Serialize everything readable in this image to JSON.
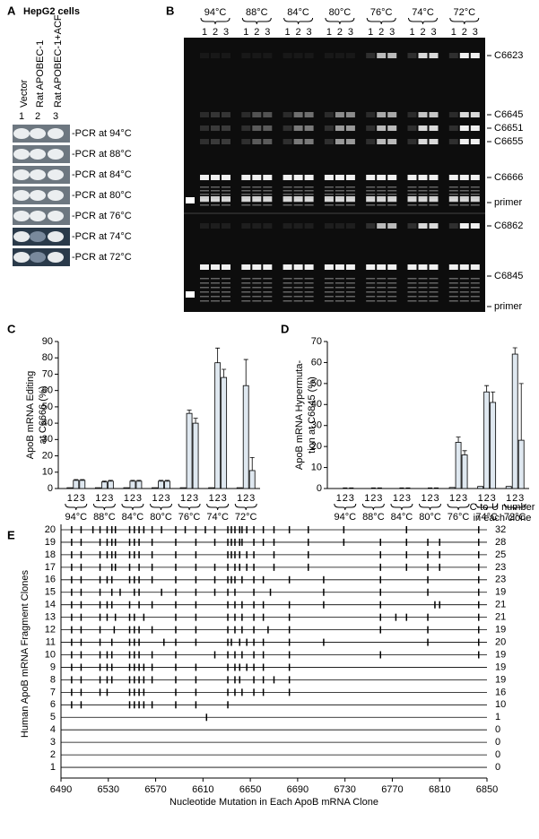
{
  "panel_a": {
    "label": "A",
    "title": "HepG2 cells",
    "lanes": [
      "Vector",
      "Rat APOBEC-1",
      "Rat APOBEC-1+ACF"
    ],
    "lane_numbers": [
      "1",
      "2",
      "3"
    ],
    "rows": [
      "-PCR at 94°C",
      "-PCR at 88°C",
      "-PCR at 84°C",
      "-PCR at 80°C",
      "-PCR at 76°C",
      "-PCR at 74°C",
      "-PCR at 72°C"
    ]
  },
  "panel_b": {
    "label": "B",
    "temperatures": [
      "94°C",
      "88°C",
      "84°C",
      "80°C",
      "76°C",
      "74°C",
      "72°C"
    ],
    "lane_numbers": [
      "1",
      "2",
      "3"
    ],
    "bands": [
      "C6623",
      "C6645",
      "C6651",
      "C6655",
      "C6666",
      "primer",
      "C6862",
      "C6845",
      "primer"
    ]
  },
  "chart_data": [
    {
      "type": "bar",
      "panel_label": "C",
      "ylabel": [
        "ApoB mRNA Editing",
        "at C6666 (%)"
      ],
      "categories": [
        "94°C",
        "88°C",
        "84°C",
        "80°C",
        "76°C",
        "74°C",
        "72°C"
      ],
      "lanes": [
        "1",
        "2",
        "3"
      ],
      "ylim": [
        0,
        90
      ],
      "yticks": [
        0,
        10,
        20,
        30,
        40,
        50,
        60,
        70,
        80,
        90
      ],
      "color": "#dfe8f0",
      "series": [
        {
          "values": [
            0.5,
            0.5,
            0.5,
            0.5,
            0.5,
            0.5,
            0.5
          ]
        },
        {
          "values": [
            5,
            4,
            4.5,
            4.5,
            46,
            77,
            63
          ],
          "errors": [
            0.5,
            0.5,
            0.5,
            0.5,
            2,
            9,
            16
          ]
        },
        {
          "values": [
            5,
            4.5,
            4.5,
            4.5,
            40,
            68,
            11
          ],
          "errors": [
            0.5,
            0.5,
            0.5,
            0.5,
            3,
            5,
            8
          ]
        }
      ]
    },
    {
      "type": "bar",
      "panel_label": "D",
      "ylabel": [
        "ApoB mRNA Hypermuta-",
        "tion at C6845 (%)"
      ],
      "categories": [
        "94°C",
        "88°C",
        "84°C",
        "80°C",
        "76°C",
        "74°C",
        "72°C"
      ],
      "lanes": [
        "1",
        "2",
        "3"
      ],
      "ylim": [
        0,
        70
      ],
      "yticks": [
        0,
        10,
        20,
        30,
        40,
        50,
        60,
        70
      ],
      "color": "#dfe8f0",
      "series": [
        {
          "values": [
            0,
            0,
            0,
            0,
            0.5,
            1,
            1
          ]
        },
        {
          "values": [
            0,
            0,
            0,
            0,
            22,
            46,
            64
          ],
          "errors": [
            0.3,
            0.3,
            0.3,
            0.3,
            2.5,
            3,
            3
          ]
        },
        {
          "values": [
            0,
            0,
            0,
            0,
            16,
            41,
            23
          ],
          "errors": [
            0.3,
            0.3,
            0.3,
            0.3,
            2,
            5,
            27
          ]
        }
      ]
    },
    {
      "type": "mutation-map",
      "panel_label": "E",
      "ylabel": "Human ApoB mRNA Fragment Clones",
      "xlabel": "Nucleotide Mutation in Each ApoB mRNA Clone",
      "count_header": [
        "C-to-U number",
        "in each clone"
      ],
      "xlim": [
        6490,
        6850
      ],
      "xticks": [
        6490,
        6530,
        6570,
        6610,
        6650,
        6690,
        6730,
        6770,
        6810,
        6850
      ],
      "clones": [
        {
          "label": 20,
          "count": 32,
          "positions": [
            6499,
            6507,
            6517,
            6523,
            6529,
            6533,
            6536,
            6548,
            6552,
            6556,
            6560,
            6567,
            6575,
            6587,
            6595,
            6604,
            6612,
            6620,
            6631,
            6634,
            6637,
            6641,
            6643,
            6647,
            6653,
            6661,
            6670,
            6683,
            6699,
            6729,
            6782,
            6843
          ]
        },
        {
          "label": 19,
          "count": 28,
          "positions": [
            6499,
            6507,
            6523,
            6529,
            6533,
            6536,
            6548,
            6552,
            6556,
            6567,
            6587,
            6604,
            6620,
            6631,
            6634,
            6637,
            6641,
            6643,
            6653,
            6661,
            6670,
            6699,
            6729,
            6760,
            6782,
            6800,
            6810,
            6843
          ]
        },
        {
          "label": 18,
          "count": 25,
          "positions": [
            6499,
            6507,
            6523,
            6529,
            6533,
            6536,
            6548,
            6552,
            6556,
            6567,
            6587,
            6604,
            6631,
            6634,
            6637,
            6641,
            6647,
            6653,
            6670,
            6699,
            6760,
            6782,
            6800,
            6810,
            6843
          ]
        },
        {
          "label": 17,
          "count": 23,
          "positions": [
            6499,
            6507,
            6523,
            6533,
            6536,
            6548,
            6556,
            6567,
            6587,
            6604,
            6620,
            6631,
            6637,
            6641,
            6647,
            6653,
            6670,
            6699,
            6760,
            6782,
            6800,
            6810,
            6843
          ]
        },
        {
          "label": 16,
          "count": 23,
          "positions": [
            6499,
            6507,
            6523,
            6529,
            6533,
            6548,
            6552,
            6556,
            6567,
            6587,
            6604,
            6620,
            6631,
            6634,
            6637,
            6643,
            6653,
            6661,
            6683,
            6712,
            6760,
            6800,
            6843
          ]
        },
        {
          "label": 15,
          "count": 19,
          "positions": [
            6499,
            6507,
            6523,
            6533,
            6540,
            6552,
            6556,
            6575,
            6587,
            6604,
            6620,
            6631,
            6637,
            6653,
            6667,
            6712,
            6760,
            6800,
            6843
          ]
        },
        {
          "label": 14,
          "count": 21,
          "positions": [
            6499,
            6507,
            6523,
            6529,
            6533,
            6548,
            6556,
            6567,
            6587,
            6604,
            6631,
            6637,
            6643,
            6653,
            6661,
            6683,
            6712,
            6760,
            6806,
            6810,
            6843
          ]
        },
        {
          "label": 13,
          "count": 21,
          "positions": [
            6499,
            6507,
            6523,
            6529,
            6536,
            6548,
            6552,
            6560,
            6587,
            6604,
            6631,
            6637,
            6643,
            6653,
            6661,
            6683,
            6760,
            6773,
            6782,
            6800,
            6843
          ]
        },
        {
          "label": 12,
          "count": 19,
          "positions": [
            6499,
            6507,
            6523,
            6535,
            6548,
            6552,
            6556,
            6567,
            6587,
            6604,
            6631,
            6637,
            6643,
            6653,
            6665,
            6683,
            6760,
            6800,
            6843
          ]
        },
        {
          "label": 11,
          "count": 20,
          "positions": [
            6499,
            6507,
            6523,
            6533,
            6548,
            6552,
            6556,
            6577,
            6587,
            6604,
            6631,
            6634,
            6641,
            6647,
            6653,
            6661,
            6683,
            6712,
            6800,
            6843
          ]
        },
        {
          "label": 10,
          "count": 19,
          "positions": [
            6499,
            6507,
            6523,
            6529,
            6533,
            6548,
            6552,
            6556,
            6567,
            6587,
            6620,
            6631,
            6637,
            6643,
            6653,
            6661,
            6683,
            6760,
            6843
          ]
        },
        {
          "label": 9,
          "count": 19,
          "positions": [
            6499,
            6507,
            6523,
            6529,
            6533,
            6548,
            6552,
            6556,
            6560,
            6567,
            6587,
            6604,
            6631,
            6637,
            6641,
            6647,
            6653,
            6661,
            6683
          ]
        },
        {
          "label": 8,
          "count": 19,
          "positions": [
            6499,
            6507,
            6523,
            6529,
            6533,
            6548,
            6552,
            6556,
            6560,
            6567,
            6587,
            6604,
            6631,
            6637,
            6641,
            6653,
            6661,
            6670,
            6683
          ]
        },
        {
          "label": 7,
          "count": 16,
          "positions": [
            6499,
            6507,
            6523,
            6529,
            6548,
            6552,
            6556,
            6560,
            6587,
            6604,
            6631,
            6637,
            6643,
            6653,
            6661,
            6683
          ]
        },
        {
          "label": 6,
          "count": 10,
          "positions": [
            6499,
            6507,
            6548,
            6552,
            6556,
            6560,
            6567,
            6587,
            6604,
            6631
          ]
        },
        {
          "label": 5,
          "count": 1,
          "positions": [
            6613
          ]
        },
        {
          "label": 4,
          "count": 0,
          "positions": []
        },
        {
          "label": 3,
          "count": 0,
          "positions": []
        },
        {
          "label": 2,
          "count": 0,
          "positions": []
        },
        {
          "label": 1,
          "count": 0,
          "positions": []
        }
      ]
    }
  ]
}
